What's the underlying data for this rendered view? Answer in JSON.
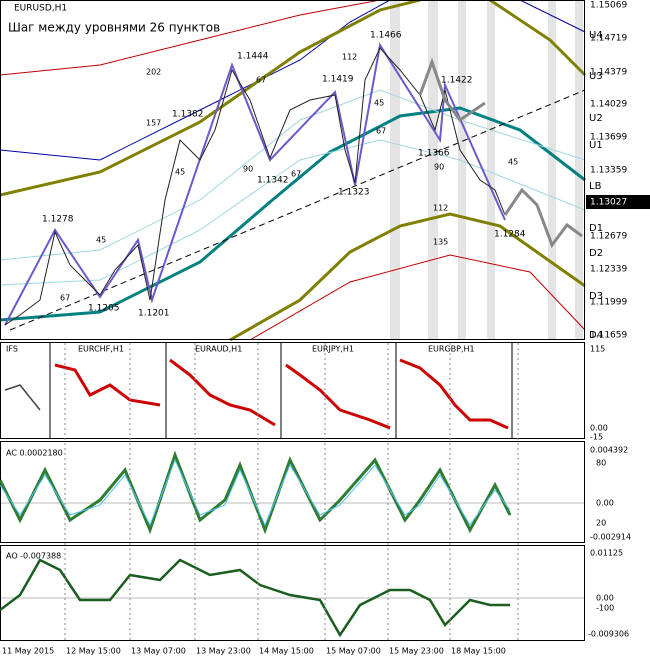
{
  "header": {
    "symbol": "EURUSD,H1",
    "note": "Шаг между уровнями 26 пунктов"
  },
  "price_axis": [
    "1.15069",
    "1.14719",
    "1.14379",
    "1.14029",
    "1.13699",
    "1.13359",
    "1.13027",
    "1.12679",
    "1.12339",
    "1.11999",
    "1.11659"
  ],
  "levels": [
    "U4",
    "U3",
    "U2",
    "U1",
    "LB",
    "D1",
    "D2",
    "D3",
    "D4"
  ],
  "swing_points": [
    "1.1444",
    "1.1466",
    "1.1419",
    "1.1422",
    "1.1382",
    "1.1366",
    "1.1342",
    "1.1323",
    "1.1278",
    "1.1284",
    "1.1205",
    "1.1201"
  ],
  "swing_counts": [
    "202",
    "157",
    "67",
    "112",
    "45",
    "67",
    "90",
    "67",
    "45",
    "45",
    "67",
    "112",
    "135",
    "90",
    "45"
  ],
  "ifs_panel": {
    "title": "IFS",
    "symbols": [
      "EURCHF,H1",
      "EURAUD,H1",
      "EURJPY,H1",
      "EURGBP,H1"
    ],
    "axis": [
      "115",
      "0.00",
      "-15"
    ]
  },
  "ac_panel": {
    "title": "AC 0.0002180",
    "axis": [
      "0.004392",
      "80",
      "0.00",
      "20",
      "-0.002914"
    ]
  },
  "ao_panel": {
    "title": "AO -0.007388",
    "axis": [
      "0.01125",
      "0.00",
      "-100",
      "-0.009306"
    ]
  },
  "time_axis": [
    "11 May 2015",
    "12 May 15:00",
    "13 May 07:00",
    "13 May 23:00",
    "14 May 15:00",
    "15 May 07:00",
    "15 May 23:00",
    "18 May 15:00"
  ]
}
